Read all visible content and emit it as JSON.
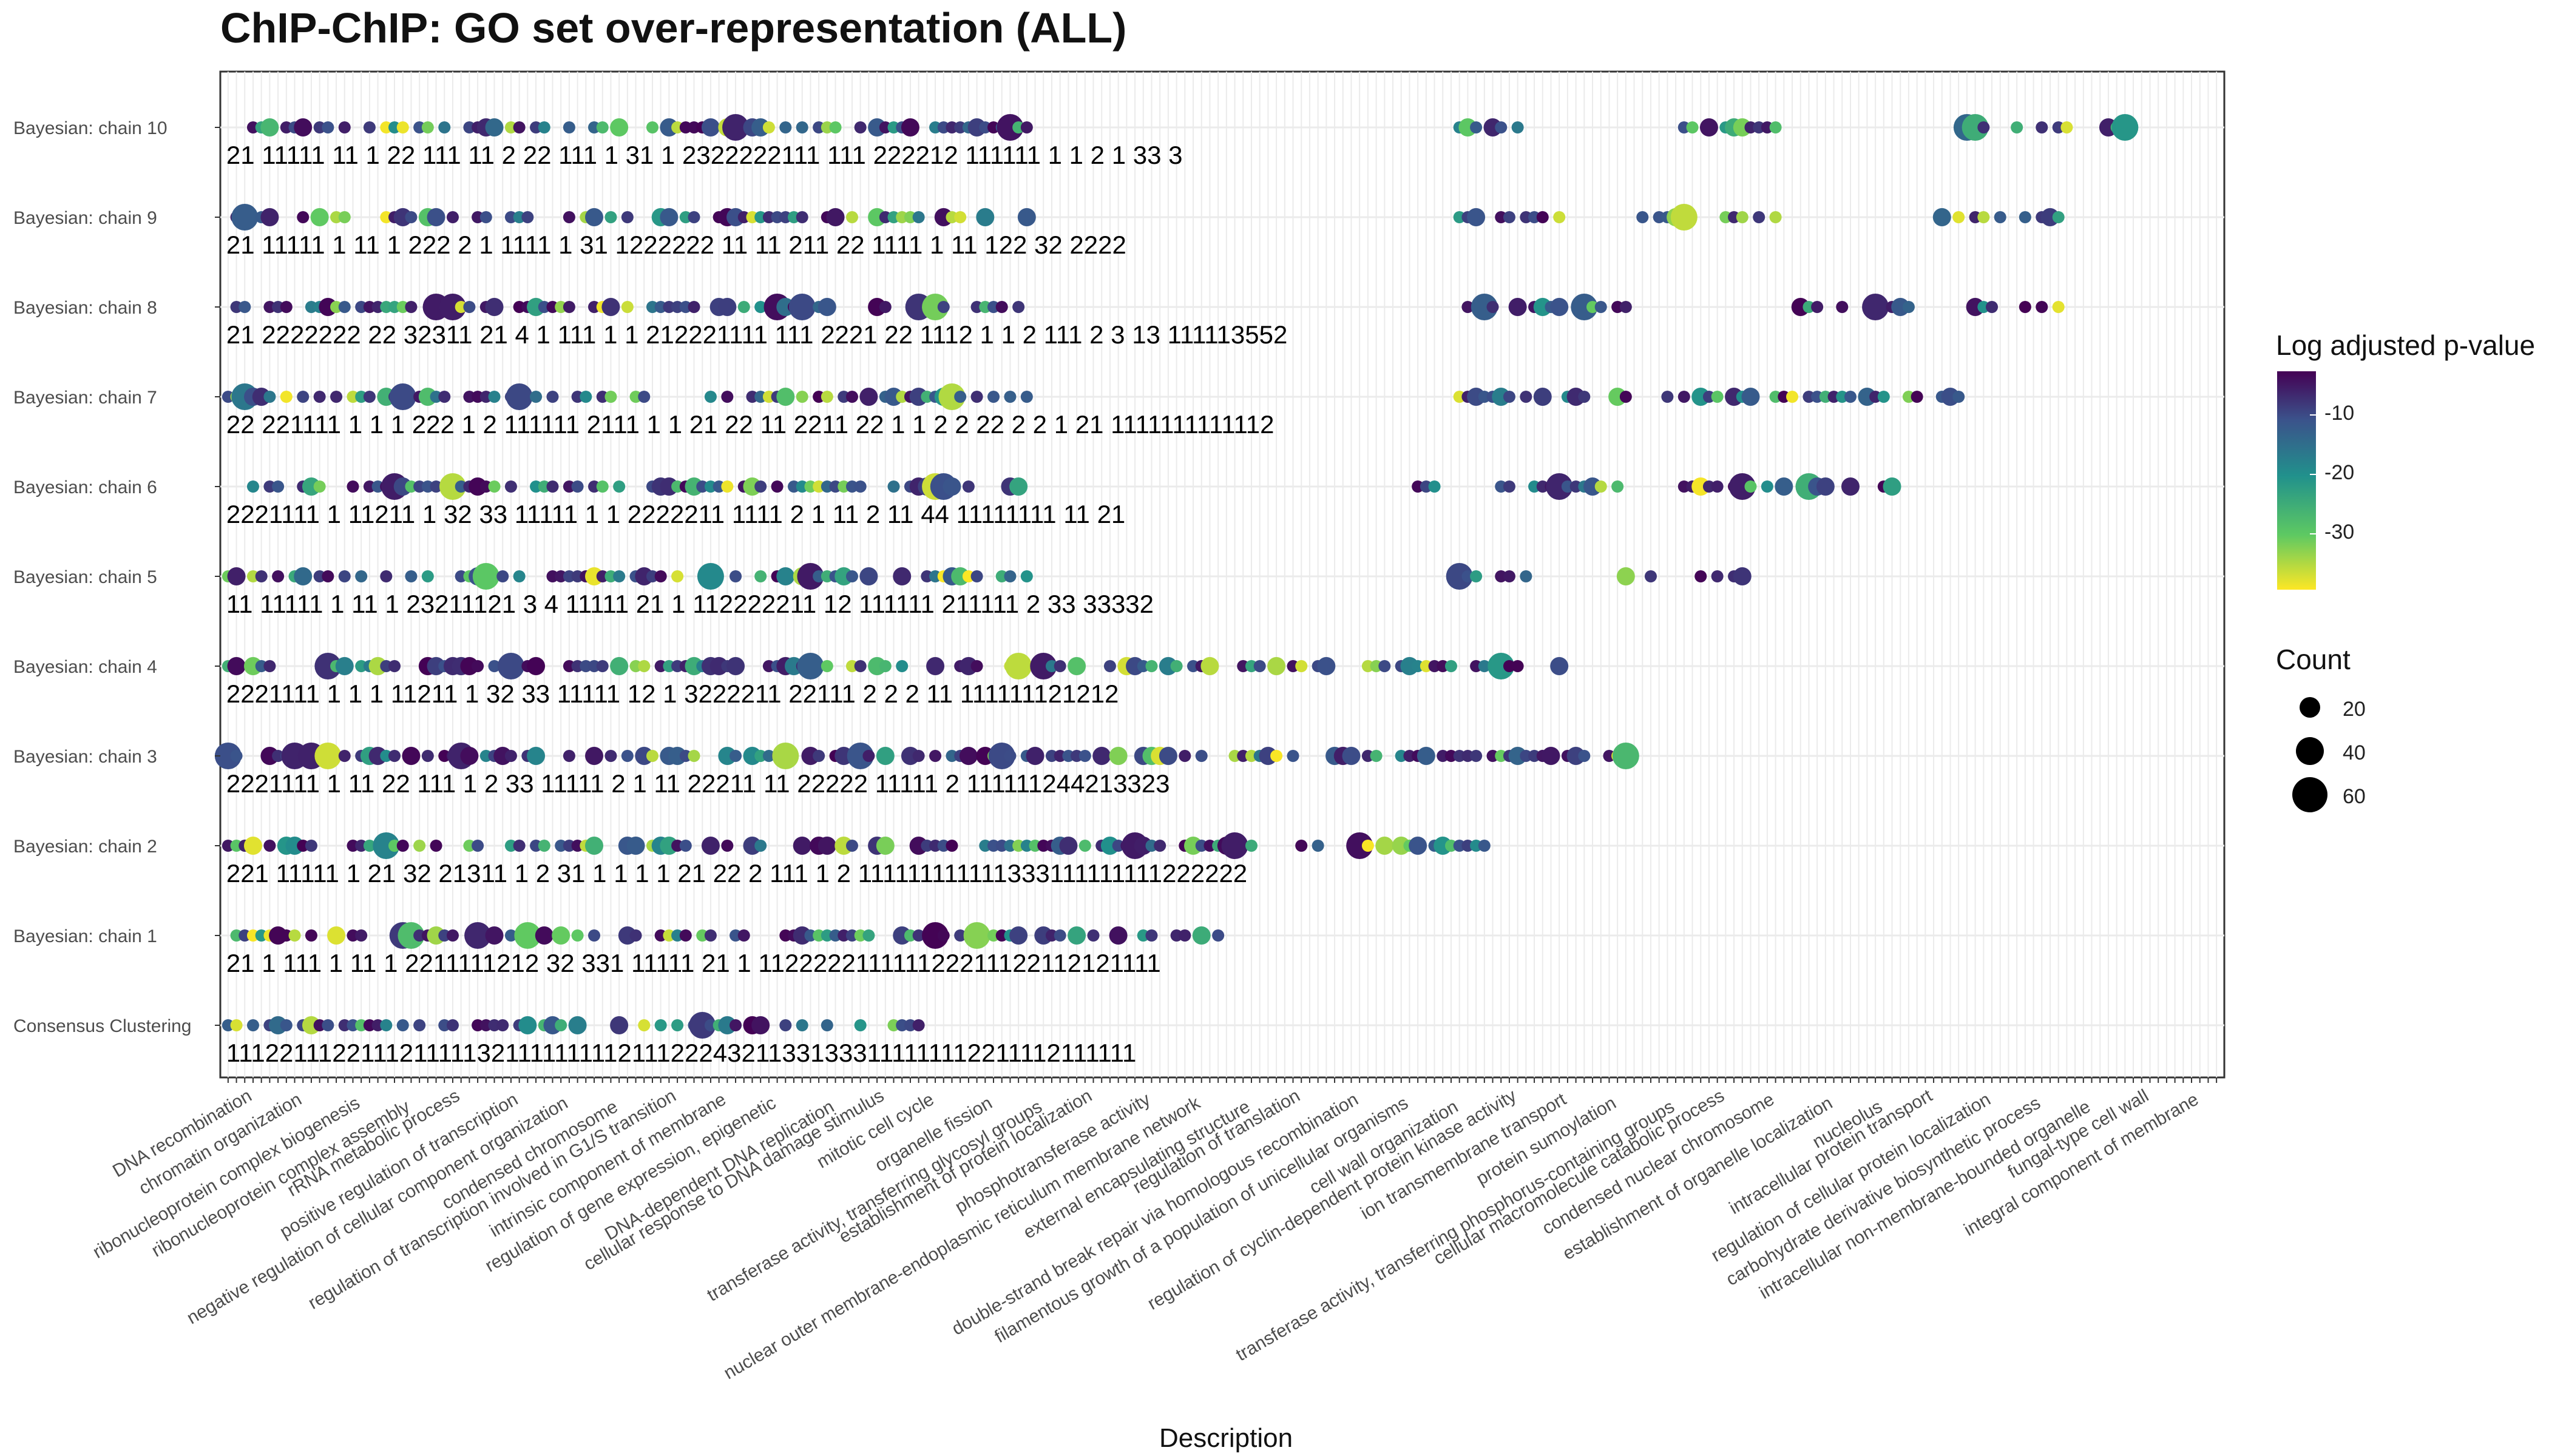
{
  "chart_data": {
    "type": "scatter",
    "title": "ChIP-ChIP: GO set over-representation (ALL)",
    "xlabel": "Description",
    "ylabel": "",
    "rows": [
      "Consensus Clustering",
      "Bayesian: chain 1",
      "Bayesian: chain 2",
      "Bayesian: chain 3",
      "Bayesian: chain 4",
      "Bayesian: chain 5",
      "Bayesian: chain 6",
      "Bayesian: chain 7",
      "Bayesian: chain 8",
      "Bayesian: chain 9",
      "Bayesian: chain 10"
    ],
    "x_tick_count": 240,
    "x_tick_labels": [
      "DNA recombination",
      "chromatin organization",
      "ribonucleoprotein complex biogenesis",
      "ribonucleoprotein complex assembly",
      "rRNA metabolic process",
      "positive regulation of transcription",
      "negative regulation of cellular component organization",
      "condensed chromosome",
      "regulation of transcription involved in G1/S transition",
      "intrinsic component of membrane",
      "regulation of gene expression, epigenetic",
      "DNA-dependent DNA replication",
      "cellular response to DNA damage stimulus",
      "mitotic cell cycle",
      "organelle fission",
      "transferase activity, transferring glycosyl groups",
      "establishment of protein localization",
      "phosphotransferase activity",
      "nuclear outer membrane-endoplasmic reticulum membrane network",
      "external encapsulating structure",
      "regulation of translation",
      "double-strand break repair via homologous recombination",
      "filamentous growth of a population of unicellular organisms",
      "cell wall organization",
      "regulation of cyclin-dependent protein kinase activity",
      "ion transmembrane transport",
      "protein sumoylation",
      "transferase activity, transferring phosphorus-containing groups",
      "cellular macromolecule catabolic process",
      "condensed nuclear chromosome",
      "establishment of organelle localization",
      "nucleolus",
      "intracellular protein transport",
      "regulation of cellular protein localization",
      "carbohydrate derivative biosynthetic process",
      "intracellular non-membrane-bounded organelle",
      "fungal-type cell wall",
      "integral component of membrane"
    ],
    "color_scale": {
      "title": "Log adjusted p-value",
      "ticks": [
        -10,
        -20,
        -30
      ],
      "range": [
        -39,
        -2
      ],
      "palette": [
        "#440154",
        "#3b528b",
        "#21918c",
        "#5ec962",
        "#fde725"
      ]
    },
    "size_scale": {
      "title": "Count",
      "ticks": [
        20,
        40,
        60
      ]
    },
    "point_label_strings": [
      "111221112211121111132111111111211122243211331333111111112211112111111",
      "21 1 111 1 11 1 2211111212 32 331 11111 21 1 112222211111122211122112121111",
      "221 11111 1 21 32 21311 1 2 31 1 1 1 1 21 22 2 111 1 2 111111111111333111111111222222",
      "2221111 1 11 22 111 1 2 33 11111 2 1 11 22211 11 22222 11111 2 111111244213323",
      "2221111 1 1 1 11211 1 32 33 11111 12 1 3222211 22111 2 2 2 11 111111121212",
      "11 11111 1 11 1 23211121 3 4 11111 21 1 112222211 12 111111 211111 2 33 33332",
      "2221111 1 11211 1 32 33 11111 1 1 2222211 1111 2 1 11 2 11 44 11111111 11 21",
      "22 221111 1 1 1 222 1 2 111111 2111 1 1 21 22 11 2211 22 1 1 2 2 22 2 2 1 21 1111111111112",
      "21 2222222 22 32311 21 4 1 111 1 1 212221111 111 2221 22 1112 1 1 2 111 2 3 13 111113552",
      "21 11111 1 11 1 222 2 1 1111 1 31 1222222 11 11 211 22 1111 1 11 122 32 2222",
      "21 11111 11 1 22 111 11 2 22 111 1 31 1 2322222111 111 222212 111111 1 1 2 1 33 3"
    ],
    "ylim": [
      0,
      10
    ],
    "grid": true,
    "legend_position": "right"
  }
}
